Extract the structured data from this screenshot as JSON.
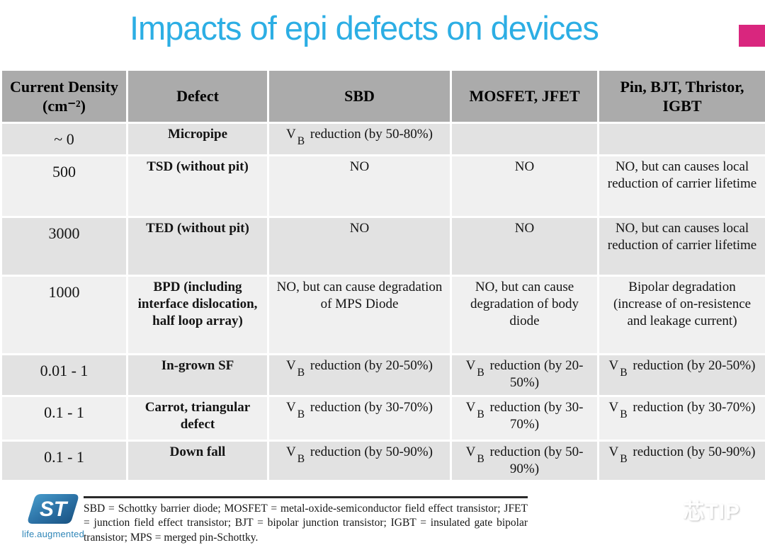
{
  "slide": {
    "title": "Impacts of epi defects on devices",
    "title_color": "#2caee4",
    "accent_square_color": "#d9267e"
  },
  "table": {
    "header_bg": "#ababab",
    "row_bg_odd": "#e2e2e2",
    "row_bg_even": "#f0f0f0",
    "columns": [
      "Current Density (cm⁻²)",
      "Defect",
      "SBD",
      "MOSFET, JFET",
      "Pin, BJT, Thristor, IGBT"
    ],
    "rows": [
      [
        "~ 0",
        "Micropipe",
        "V_B reduction (by 50-80%)",
        "",
        ""
      ],
      [
        "500",
        "TSD (without pit)",
        "NO",
        "NO",
        "NO, but can causes local reduction of carrier lifetime"
      ],
      [
        "3000",
        "TED (without pit)",
        "NO",
        "NO",
        "NO, but can causes local reduction of carrier lifetime"
      ],
      [
        "1000",
        "BPD (including interface dislocation, half loop array)",
        "NO, but can cause degradation of MPS Diode",
        "NO, but can cause degradation of body diode",
        "Bipolar degradation (increase of on-resistence and leakage current)"
      ],
      [
        "0.01 - 1",
        "In-grown SF",
        "V_B reduction (by 20-50%)",
        "V_B reduction (by 20-50%)",
        "V_B reduction (by 20-50%)"
      ],
      [
        "0.1 - 1",
        "Carrot, triangular defect",
        "V_B reduction (by 30-70%)",
        "V_B reduction (by 30-70%)",
        "V_B reduction (by 30-70%)"
      ],
      [
        "0.1 - 1",
        "Down fall",
        "V_B reduction (by 50-90%)",
        "V_B reduction (by 50-90%)",
        "V_B reduction (by 50-90%)"
      ]
    ]
  },
  "footer": {
    "logo_caption": "life.augmented",
    "footnote": "SBD = Schottky barrier diode; MOSFET = metal-oxide-semiconductor field effect transistor; JFET = junction field effect transistor; BJT = bipolar junction transistor; IGBT = insulated gate bipolar transistor; MPS = merged pin-Schottky.",
    "watermark": "芯TIP"
  }
}
